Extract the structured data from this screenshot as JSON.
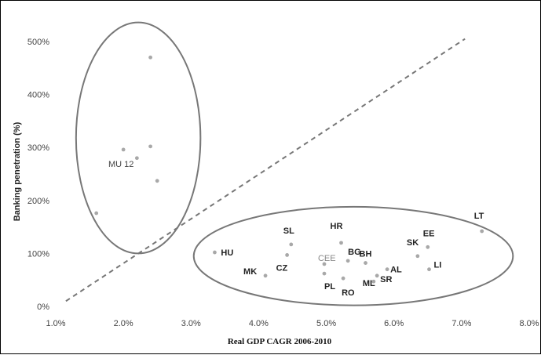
{
  "chart_data": {
    "type": "scatter",
    "title": "",
    "xlabel": "Real GDP CAGR 2006-2010",
    "ylabel": "Banking penetration (%)",
    "xlim": [
      1.0,
      8.0
    ],
    "ylim": [
      0,
      500
    ],
    "x_ticks": [
      "1.0%",
      "2.0%",
      "3.0%",
      "4.0%",
      "5.0%",
      "6.0%",
      "7.0%",
      "8.0%"
    ],
    "y_ticks": [
      "0%",
      "100%",
      "200%",
      "300%",
      "400%",
      "500%"
    ],
    "grid": false,
    "point_color": "#a8a8a8",
    "points": [
      {
        "label": "",
        "x": 2.4,
        "y": 470
      },
      {
        "label": "",
        "x": 2.4,
        "y": 302
      },
      {
        "label": "",
        "x": 2.0,
        "y": 296
      },
      {
        "label": "",
        "x": 2.2,
        "y": 280
      },
      {
        "label": "",
        "x": 2.5,
        "y": 237
      },
      {
        "label": "",
        "x": 1.6,
        "y": 176
      },
      {
        "label": "HU",
        "x": 3.35,
        "y": 102
      },
      {
        "label": "SL",
        "x": 4.48,
        "y": 117
      },
      {
        "label": "CZ",
        "x": 4.42,
        "y": 97
      },
      {
        "label": "MK",
        "x": 4.1,
        "y": 58
      },
      {
        "label": "CEE",
        "x": 4.97,
        "y": 80
      },
      {
        "label": "PL",
        "x": 4.97,
        "y": 62
      },
      {
        "label": "HR",
        "x": 5.22,
        "y": 120
      },
      {
        "label": "BG",
        "x": 5.32,
        "y": 86
      },
      {
        "label": "RO",
        "x": 5.25,
        "y": 53
      },
      {
        "label": "BH",
        "x": 5.58,
        "y": 82
      },
      {
        "label": "ML",
        "x": 5.7,
        "y": 47
      },
      {
        "label": "SR",
        "x": 5.75,
        "y": 58
      },
      {
        "label": "AL",
        "x": 5.9,
        "y": 70
      },
      {
        "label": "SK",
        "x": 6.35,
        "y": 95
      },
      {
        "label": "EE",
        "x": 6.5,
        "y": 112
      },
      {
        "label": "LI",
        "x": 6.52,
        "y": 70
      },
      {
        "label": "LT",
        "x": 7.3,
        "y": 142
      }
    ],
    "annotations": [
      {
        "label": "MU 12"
      }
    ],
    "trend_line": {
      "style": "dashed",
      "from": [
        1.15,
        10
      ],
      "to": [
        7.05,
        505
      ]
    },
    "groups": [
      {
        "name": "MU 12",
        "center": [
          2.22,
          318
        ],
        "rx_units": 0.92,
        "ry_units": 218
      },
      {
        "name": "CEE",
        "center": [
          5.4,
          95
        ],
        "rx_units": 2.36,
        "ry_units": 93
      }
    ]
  }
}
